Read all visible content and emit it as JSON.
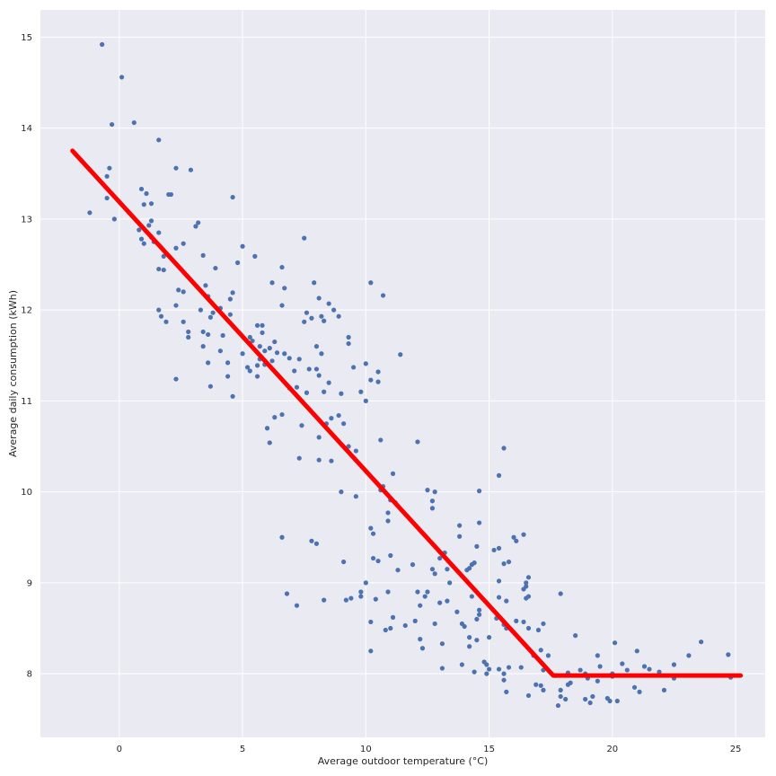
{
  "chart_data": {
    "type": "scatter",
    "title": "",
    "xlabel": "Average outdoor temperature (°C)",
    "ylabel": "Average daily consumption (kWh)",
    "xlim": [
      -3.2,
      26.2
    ],
    "ylim": [
      7.3,
      15.3
    ],
    "xticks": [
      0,
      5,
      10,
      15,
      20,
      25
    ],
    "yticks": [
      8,
      9,
      10,
      11,
      12,
      13,
      14,
      15
    ],
    "grid": true,
    "colors": {
      "background": "#eaeaf2",
      "grid": "#ffffff",
      "points": "#4c72b0",
      "fit": "#ff0000"
    },
    "series": [
      {
        "kind": "scatter",
        "points": [
          [
            -0.7,
            14.92
          ],
          [
            0.1,
            14.56
          ],
          [
            -0.3,
            14.04
          ],
          [
            0.6,
            14.06
          ],
          [
            -0.4,
            13.56
          ],
          [
            -0.5,
            13.47
          ],
          [
            -0.5,
            13.23
          ],
          [
            -1.2,
            13.07
          ],
          [
            -0.2,
            13.0
          ],
          [
            0.9,
            13.33
          ],
          [
            1.1,
            13.28
          ],
          [
            1.3,
            13.17
          ],
          [
            1.0,
            13.16
          ],
          [
            1.3,
            12.98
          ],
          [
            1.2,
            12.93
          ],
          [
            0.8,
            12.88
          ],
          [
            1.6,
            12.85
          ],
          [
            0.9,
            12.78
          ],
          [
            1.0,
            12.73
          ],
          [
            1.3,
            12.8
          ],
          [
            1.4,
            12.75
          ],
          [
            1.6,
            13.87
          ],
          [
            2.0,
            13.27
          ],
          [
            2.1,
            13.27
          ],
          [
            2.3,
            13.56
          ],
          [
            2.9,
            13.54
          ],
          [
            3.2,
            12.96
          ],
          [
            3.1,
            12.92
          ],
          [
            2.6,
            12.73
          ],
          [
            2.3,
            12.68
          ],
          [
            1.8,
            12.59
          ],
          [
            1.6,
            12.45
          ],
          [
            1.8,
            12.44
          ],
          [
            2.4,
            12.22
          ],
          [
            2.6,
            12.2
          ],
          [
            2.3,
            12.05
          ],
          [
            1.6,
            12.0
          ],
          [
            1.7,
            11.93
          ],
          [
            1.9,
            11.87
          ],
          [
            2.6,
            11.87
          ],
          [
            2.8,
            11.76
          ],
          [
            2.8,
            11.7
          ],
          [
            2.3,
            11.24
          ],
          [
            4.6,
            13.24
          ],
          [
            3.4,
            12.6
          ],
          [
            3.9,
            12.46
          ],
          [
            5.0,
            12.7
          ],
          [
            4.8,
            12.52
          ],
          [
            3.5,
            12.27
          ],
          [
            4.6,
            12.19
          ],
          [
            4.5,
            12.12
          ],
          [
            3.6,
            12.15
          ],
          [
            4.1,
            12.02
          ],
          [
            3.3,
            12.0
          ],
          [
            3.8,
            11.97
          ],
          [
            3.7,
            11.92
          ],
          [
            4.5,
            11.95
          ],
          [
            3.4,
            11.76
          ],
          [
            3.6,
            11.73
          ],
          [
            4.2,
            11.72
          ],
          [
            3.4,
            11.6
          ],
          [
            4.1,
            11.55
          ],
          [
            4.4,
            11.42
          ],
          [
            3.6,
            11.42
          ],
          [
            4.4,
            11.27
          ],
          [
            3.7,
            11.16
          ],
          [
            4.6,
            11.05
          ],
          [
            5.5,
            12.59
          ],
          [
            5.6,
            11.83
          ],
          [
            5.8,
            11.83
          ],
          [
            5.8,
            11.75
          ],
          [
            5.3,
            11.7
          ],
          [
            5.4,
            11.66
          ],
          [
            5.7,
            11.6
          ],
          [
            6.3,
            11.65
          ],
          [
            6.1,
            11.58
          ],
          [
            5.9,
            11.55
          ],
          [
            6.4,
            11.53
          ],
          [
            5.0,
            11.52
          ],
          [
            5.7,
            11.46
          ],
          [
            5.9,
            11.4
          ],
          [
            6.2,
            11.44
          ],
          [
            5.6,
            11.39
          ],
          [
            5.2,
            11.37
          ],
          [
            5.3,
            11.33
          ],
          [
            5.6,
            11.27
          ],
          [
            6.2,
            12.3
          ],
          [
            6.6,
            12.47
          ],
          [
            6.7,
            12.24
          ],
          [
            6.6,
            12.05
          ],
          [
            7.5,
            12.79
          ],
          [
            7.9,
            12.3
          ],
          [
            8.1,
            12.13
          ],
          [
            8.2,
            11.93
          ],
          [
            7.6,
            11.97
          ],
          [
            7.5,
            11.87
          ],
          [
            7.8,
            11.91
          ],
          [
            8.5,
            12.07
          ],
          [
            8.7,
            12.0
          ],
          [
            8.9,
            11.93
          ],
          [
            8.3,
            11.88
          ],
          [
            8.0,
            11.6
          ],
          [
            8.2,
            11.52
          ],
          [
            7.3,
            11.46
          ],
          [
            7.1,
            11.33
          ],
          [
            7.7,
            11.35
          ],
          [
            8.0,
            11.35
          ],
          [
            6.7,
            11.52
          ],
          [
            6.9,
            11.47
          ],
          [
            6.9,
            11.14
          ],
          [
            7.2,
            11.15
          ],
          [
            7.6,
            11.09
          ],
          [
            8.1,
            11.28
          ],
          [
            8.5,
            11.2
          ],
          [
            8.3,
            11.1
          ],
          [
            8.6,
            10.81
          ],
          [
            8.9,
            10.84
          ],
          [
            9.1,
            10.75
          ],
          [
            8.4,
            10.75
          ],
          [
            7.4,
            10.73
          ],
          [
            6.6,
            10.85
          ],
          [
            6.3,
            10.82
          ],
          [
            6.0,
            10.7
          ],
          [
            6.1,
            10.54
          ],
          [
            7.3,
            10.37
          ],
          [
            8.1,
            10.6
          ],
          [
            8.1,
            10.35
          ],
          [
            8.6,
            10.34
          ],
          [
            9.3,
            10.5
          ],
          [
            9.6,
            10.45
          ],
          [
            9.3,
            11.7
          ],
          [
            9.3,
            11.63
          ],
          [
            9.5,
            11.37
          ],
          [
            10.0,
            11.41
          ],
          [
            10.2,
            11.23
          ],
          [
            10.5,
            11.21
          ],
          [
            10.5,
            11.32
          ],
          [
            9.8,
            11.1
          ],
          [
            9.0,
            11.08
          ],
          [
            10.0,
            11.0
          ],
          [
            10.2,
            12.3
          ],
          [
            10.7,
            12.16
          ],
          [
            11.4,
            11.51
          ],
          [
            10.6,
            10.57
          ],
          [
            11.1,
            10.2
          ],
          [
            9.0,
            10.0
          ],
          [
            9.6,
            9.95
          ],
          [
            10.7,
            10.06
          ],
          [
            10.6,
            10.02
          ],
          [
            11.0,
            9.91
          ],
          [
            11.2,
            9.88
          ],
          [
            12.1,
            10.55
          ],
          [
            12.5,
            10.02
          ],
          [
            12.8,
            10.0
          ],
          [
            12.7,
            9.9
          ],
          [
            12.7,
            9.82
          ],
          [
            10.9,
            9.77
          ],
          [
            10.9,
            9.68
          ],
          [
            10.2,
            9.6
          ],
          [
            10.3,
            9.54
          ],
          [
            10.3,
            9.27
          ],
          [
            10.5,
            9.24
          ],
          [
            10.0,
            9.0
          ],
          [
            9.1,
            9.23
          ],
          [
            9.2,
            8.81
          ],
          [
            9.4,
            8.83
          ],
          [
            9.8,
            8.9
          ],
          [
            9.8,
            8.85
          ],
          [
            10.4,
            8.82
          ],
          [
            10.9,
            8.9
          ],
          [
            11.1,
            8.62
          ],
          [
            11.3,
            9.14
          ],
          [
            11.0,
            9.3
          ],
          [
            11.9,
            9.2
          ],
          [
            12.1,
            8.9
          ],
          [
            12.5,
            8.9
          ],
          [
            12.4,
            8.85
          ],
          [
            12.7,
            9.15
          ],
          [
            12.8,
            9.1
          ],
          [
            13.0,
            9.27
          ],
          [
            13.2,
            9.33
          ],
          [
            13.4,
            9.0
          ],
          [
            13.3,
            9.15
          ],
          [
            12.2,
            8.75
          ],
          [
            12.0,
            8.58
          ],
          [
            11.6,
            8.53
          ],
          [
            12.2,
            8.38
          ],
          [
            12.3,
            8.28
          ],
          [
            13.0,
            8.78
          ],
          [
            13.3,
            8.8
          ],
          [
            12.8,
            8.55
          ],
          [
            11.0,
            8.5
          ],
          [
            10.8,
            8.48
          ],
          [
            10.2,
            8.57
          ],
          [
            10.2,
            8.25
          ],
          [
            8.3,
            8.81
          ],
          [
            7.2,
            8.75
          ],
          [
            6.8,
            8.88
          ],
          [
            7.8,
            9.46
          ],
          [
            8.0,
            9.43
          ],
          [
            6.6,
            9.5
          ],
          [
            13.1,
            8.33
          ],
          [
            13.1,
            8.06
          ],
          [
            13.9,
            8.1
          ],
          [
            14.2,
            8.3
          ],
          [
            14.4,
            8.02
          ],
          [
            14.5,
            8.6
          ],
          [
            14.6,
            8.65
          ],
          [
            14.6,
            8.7
          ],
          [
            14.3,
            8.85
          ],
          [
            14.3,
            9.2
          ],
          [
            14.4,
            9.22
          ],
          [
            14.1,
            9.14
          ],
          [
            14.2,
            9.16
          ],
          [
            13.8,
            9.51
          ],
          [
            13.8,
            9.63
          ],
          [
            14.5,
            9.4
          ],
          [
            14.6,
            9.66
          ],
          [
            14.6,
            10.01
          ],
          [
            15.2,
            9.36
          ],
          [
            15.4,
            9.38
          ],
          [
            15.6,
            9.21
          ],
          [
            15.8,
            9.23
          ],
          [
            16.0,
            9.5
          ],
          [
            16.1,
            9.46
          ],
          [
            16.4,
            9.53
          ],
          [
            16.6,
            9.06
          ],
          [
            16.5,
            9.0
          ],
          [
            16.5,
            8.96
          ],
          [
            16.4,
            8.93
          ],
          [
            16.6,
            8.85
          ],
          [
            16.5,
            8.83
          ],
          [
            15.7,
            8.8
          ],
          [
            15.4,
            8.84
          ],
          [
            15.3,
            8.61
          ],
          [
            15.6,
            8.54
          ],
          [
            15.7,
            8.5
          ],
          [
            16.1,
            8.58
          ],
          [
            16.4,
            8.57
          ],
          [
            16.6,
            8.5
          ],
          [
            17.0,
            8.48
          ],
          [
            17.2,
            8.55
          ],
          [
            15.6,
            10.48
          ],
          [
            15.4,
            10.18
          ],
          [
            15.4,
            9.02
          ],
          [
            13.9,
            8.55
          ],
          [
            14.0,
            8.52
          ],
          [
            13.7,
            8.68
          ],
          [
            14.2,
            8.4
          ],
          [
            14.5,
            8.37
          ],
          [
            14.8,
            8.13
          ],
          [
            14.9,
            8.0
          ],
          [
            15.0,
            8.4
          ],
          [
            14.9,
            8.1
          ],
          [
            15.0,
            8.05
          ],
          [
            15.4,
            8.05
          ],
          [
            15.6,
            8.0
          ],
          [
            15.6,
            7.93
          ],
          [
            15.7,
            7.8
          ],
          [
            15.8,
            8.07
          ],
          [
            16.3,
            8.07
          ],
          [
            16.6,
            7.76
          ],
          [
            16.8,
            8.2
          ],
          [
            16.9,
            7.88
          ],
          [
            17.1,
            7.87
          ],
          [
            17.2,
            7.82
          ],
          [
            17.1,
            8.26
          ],
          [
            17.2,
            8.04
          ],
          [
            17.4,
            8.2
          ],
          [
            17.7,
            7.98
          ],
          [
            17.9,
            7.82
          ],
          [
            17.9,
            7.75
          ],
          [
            17.8,
            7.65
          ],
          [
            18.1,
            7.72
          ],
          [
            18.2,
            7.88
          ],
          [
            18.3,
            7.9
          ],
          [
            18.2,
            8.01
          ],
          [
            18.5,
            8.42
          ],
          [
            17.9,
            8.88
          ],
          [
            18.7,
            8.04
          ],
          [
            18.9,
            8.0
          ],
          [
            19.0,
            7.95
          ],
          [
            18.9,
            7.72
          ],
          [
            19.1,
            7.68
          ],
          [
            19.2,
            7.75
          ],
          [
            19.4,
            7.92
          ],
          [
            19.4,
            8.2
          ],
          [
            19.5,
            8.08
          ],
          [
            19.8,
            7.73
          ],
          [
            19.9,
            7.7
          ],
          [
            20.0,
            8.0
          ],
          [
            20.1,
            8.34
          ],
          [
            20.0,
            7.97
          ],
          [
            20.2,
            7.7
          ],
          [
            20.4,
            8.11
          ],
          [
            20.6,
            8.04
          ],
          [
            20.9,
            7.85
          ],
          [
            21.0,
            8.25
          ],
          [
            21.1,
            7.8
          ],
          [
            21.3,
            8.08
          ],
          [
            21.5,
            8.05
          ],
          [
            21.9,
            8.02
          ],
          [
            22.1,
            7.82
          ],
          [
            22.5,
            7.95
          ],
          [
            22.5,
            8.1
          ],
          [
            23.1,
            8.2
          ],
          [
            23.6,
            8.35
          ],
          [
            24.7,
            8.21
          ],
          [
            24.8,
            7.96
          ]
        ]
      },
      {
        "kind": "line",
        "points": [
          [
            -1.9,
            13.75
          ],
          [
            17.6,
            7.98
          ],
          [
            25.2,
            7.98
          ]
        ]
      }
    ]
  }
}
